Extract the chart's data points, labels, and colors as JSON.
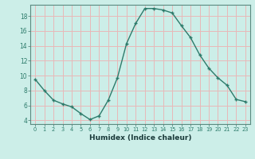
{
  "x": [
    0,
    1,
    2,
    3,
    4,
    5,
    6,
    7,
    8,
    9,
    10,
    11,
    12,
    13,
    14,
    15,
    16,
    17,
    18,
    19,
    20,
    21,
    22,
    23
  ],
  "y": [
    9.5,
    8.0,
    6.7,
    6.2,
    5.8,
    4.9,
    4.1,
    4.6,
    6.7,
    9.7,
    14.3,
    17.0,
    19.0,
    19.0,
    18.8,
    18.4,
    16.7,
    15.1,
    12.8,
    11.0,
    9.7,
    8.7,
    6.8,
    6.5
  ],
  "xlabel": "Humidex (Indice chaleur)",
  "xlim": [
    -0.5,
    23.5
  ],
  "ylim": [
    3.5,
    19.5
  ],
  "yticks": [
    4,
    6,
    8,
    10,
    12,
    14,
    16,
    18
  ],
  "xticks": [
    0,
    1,
    2,
    3,
    4,
    5,
    6,
    7,
    8,
    9,
    10,
    11,
    12,
    13,
    14,
    15,
    16,
    17,
    18,
    19,
    20,
    21,
    22,
    23
  ],
  "line_color": "#2d7b6b",
  "bg_color": "#cceee8",
  "grid_color": "#e8b8b8",
  "spine_color": "#5a8a80",
  "tick_color": "#2d7b6b",
  "label_color": "#1a3a3a"
}
